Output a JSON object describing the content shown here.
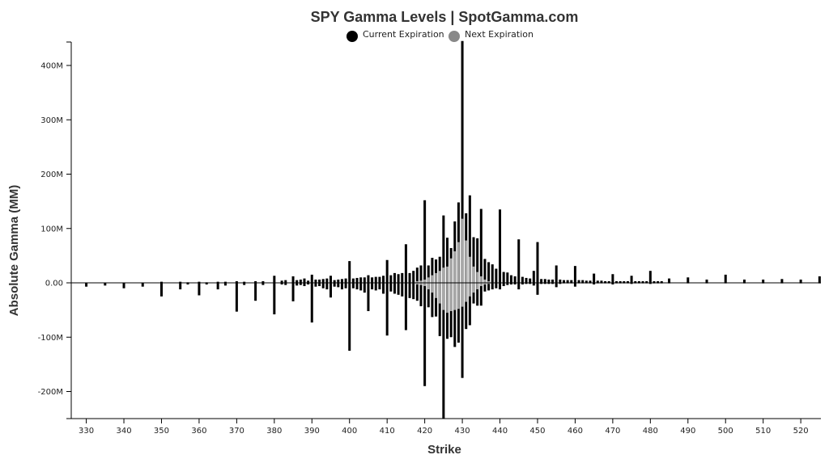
{
  "chart_data": {
    "type": "bar",
    "title": "SPY Gamma Levels | SpotGamma.com",
    "xlabel": "Strike",
    "ylabel": "Absolute Gamma (MM)",
    "xlim": [
      326,
      525
    ],
    "ylim": [
      -250,
      445
    ],
    "x_ticks": [
      330,
      340,
      350,
      360,
      370,
      380,
      390,
      400,
      410,
      420,
      430,
      440,
      450,
      460,
      470,
      480,
      490,
      500,
      510,
      520
    ],
    "y_ticks": [
      {
        "value": 400,
        "label": "400M"
      },
      {
        "value": 300,
        "label": "300M"
      },
      {
        "value": 200,
        "label": "200M"
      },
      {
        "value": 100,
        "label": "100M"
      },
      {
        "value": 0,
        "label": "0.00"
      },
      {
        "value": -100,
        "label": "-100M"
      },
      {
        "value": -200,
        "label": "-200M"
      }
    ],
    "legend": "top-center",
    "series": [
      {
        "name": "Current Expiration",
        "color": "#000000",
        "points": [
          {
            "x": 330,
            "pos": 0,
            "neg": -7
          },
          {
            "x": 335,
            "pos": 0,
            "neg": -5
          },
          {
            "x": 340,
            "pos": 0,
            "neg": -10
          },
          {
            "x": 345,
            "pos": 0,
            "neg": -7
          },
          {
            "x": 350,
            "pos": 2,
            "neg": -25
          },
          {
            "x": 355,
            "pos": 2,
            "neg": -12
          },
          {
            "x": 357,
            "pos": 1,
            "neg": -3
          },
          {
            "x": 360,
            "pos": 2,
            "neg": -23
          },
          {
            "x": 362,
            "pos": 1,
            "neg": -3
          },
          {
            "x": 365,
            "pos": 2,
            "neg": -12
          },
          {
            "x": 367,
            "pos": 2,
            "neg": -5
          },
          {
            "x": 370,
            "pos": 3,
            "neg": -53
          },
          {
            "x": 372,
            "pos": 2,
            "neg": -4
          },
          {
            "x": 375,
            "pos": 3,
            "neg": -33
          },
          {
            "x": 377,
            "pos": 3,
            "neg": -4
          },
          {
            "x": 380,
            "pos": 13,
            "neg": -58
          },
          {
            "x": 382,
            "pos": 4,
            "neg": -3
          },
          {
            "x": 383,
            "pos": 5,
            "neg": -4
          },
          {
            "x": 385,
            "pos": 12,
            "neg": -34
          },
          {
            "x": 386,
            "pos": 5,
            "neg": -5
          },
          {
            "x": 387,
            "pos": 6,
            "neg": -4
          },
          {
            "x": 388,
            "pos": 8,
            "neg": -6
          },
          {
            "x": 389,
            "pos": 4,
            "neg": -3
          },
          {
            "x": 390,
            "pos": 15,
            "neg": -73
          },
          {
            "x": 391,
            "pos": 6,
            "neg": -7
          },
          {
            "x": 392,
            "pos": 6,
            "neg": -6
          },
          {
            "x": 393,
            "pos": 7,
            "neg": -10
          },
          {
            "x": 394,
            "pos": 8,
            "neg": -12
          },
          {
            "x": 395,
            "pos": 13,
            "neg": -27
          },
          {
            "x": 396,
            "pos": 5,
            "neg": -7
          },
          {
            "x": 397,
            "pos": 6,
            "neg": -8
          },
          {
            "x": 398,
            "pos": 7,
            "neg": -12
          },
          {
            "x": 399,
            "pos": 8,
            "neg": -10
          },
          {
            "x": 400,
            "pos": 40,
            "neg": -125
          },
          {
            "x": 401,
            "pos": 8,
            "neg": -10
          },
          {
            "x": 402,
            "pos": 9,
            "neg": -12
          },
          {
            "x": 403,
            "pos": 10,
            "neg": -14
          },
          {
            "x": 404,
            "pos": 10,
            "neg": -18
          },
          {
            "x": 405,
            "pos": 14,
            "neg": -52
          },
          {
            "x": 406,
            "pos": 10,
            "neg": -12
          },
          {
            "x": 407,
            "pos": 11,
            "neg": -14
          },
          {
            "x": 408,
            "pos": 11,
            "neg": -12
          },
          {
            "x": 409,
            "pos": 13,
            "neg": -20
          },
          {
            "x": 410,
            "pos": 42,
            "neg": -97
          },
          {
            "x": 411,
            "pos": 14,
            "neg": -16
          },
          {
            "x": 412,
            "pos": 18,
            "neg": -20
          },
          {
            "x": 413,
            "pos": 16,
            "neg": -22
          },
          {
            "x": 414,
            "pos": 18,
            "neg": -25
          },
          {
            "x": 415,
            "pos": 71,
            "neg": -87
          },
          {
            "x": 416,
            "pos": 18,
            "neg": -28
          },
          {
            "x": 417,
            "pos": 22,
            "neg": -30
          },
          {
            "x": 418,
            "pos": 28,
            "neg": -33
          },
          {
            "x": 419,
            "pos": 32,
            "neg": -43
          },
          {
            "x": 420,
            "pos": 152,
            "neg": -190
          },
          {
            "x": 421,
            "pos": 32,
            "neg": -45
          },
          {
            "x": 422,
            "pos": 46,
            "neg": -63
          },
          {
            "x": 423,
            "pos": 43,
            "neg": -62
          },
          {
            "x": 424,
            "pos": 48,
            "neg": -98
          },
          {
            "x": 425,
            "pos": 124,
            "neg": -250
          },
          {
            "x": 426,
            "pos": 83,
            "neg": -103
          },
          {
            "x": 427,
            "pos": 64,
            "neg": -100
          },
          {
            "x": 428,
            "pos": 113,
            "neg": -118
          },
          {
            "x": 429,
            "pos": 148,
            "neg": -110
          },
          {
            "x": 430,
            "pos": 445,
            "neg": -175
          },
          {
            "x": 431,
            "pos": 128,
            "neg": -85
          },
          {
            "x": 432,
            "pos": 161,
            "neg": -78
          },
          {
            "x": 433,
            "pos": 84,
            "neg": -38
          },
          {
            "x": 434,
            "pos": 82,
            "neg": -42
          },
          {
            "x": 435,
            "pos": 136,
            "neg": -42
          },
          {
            "x": 436,
            "pos": 44,
            "neg": -16
          },
          {
            "x": 437,
            "pos": 38,
            "neg": -14
          },
          {
            "x": 438,
            "pos": 34,
            "neg": -12
          },
          {
            "x": 439,
            "pos": 26,
            "neg": -10
          },
          {
            "x": 440,
            "pos": 135,
            "neg": -12
          },
          {
            "x": 441,
            "pos": 20,
            "neg": -6
          },
          {
            "x": 442,
            "pos": 19,
            "neg": -4
          },
          {
            "x": 443,
            "pos": 14,
            "neg": -3
          },
          {
            "x": 444,
            "pos": 12,
            "neg": -3
          },
          {
            "x": 445,
            "pos": 80,
            "neg": -12
          },
          {
            "x": 446,
            "pos": 11,
            "neg": -3
          },
          {
            "x": 447,
            "pos": 9,
            "neg": -2
          },
          {
            "x": 448,
            "pos": 8,
            "neg": -2
          },
          {
            "x": 449,
            "pos": 22,
            "neg": -5
          },
          {
            "x": 450,
            "pos": 75,
            "neg": -22
          },
          {
            "x": 451,
            "pos": 7,
            "neg": -2
          },
          {
            "x": 452,
            "pos": 7,
            "neg": -2
          },
          {
            "x": 453,
            "pos": 6,
            "neg": -2
          },
          {
            "x": 454,
            "pos": 6,
            "neg": -2
          },
          {
            "x": 455,
            "pos": 32,
            "neg": -8
          },
          {
            "x": 456,
            "pos": 6,
            "neg": -2
          },
          {
            "x": 457,
            "pos": 5,
            "neg": -1
          },
          {
            "x": 458,
            "pos": 5,
            "neg": -1
          },
          {
            "x": 459,
            "pos": 5,
            "neg": -1
          },
          {
            "x": 460,
            "pos": 31,
            "neg": -7
          },
          {
            "x": 461,
            "pos": 5,
            "neg": -1
          },
          {
            "x": 462,
            "pos": 5,
            "neg": -1
          },
          {
            "x": 463,
            "pos": 4,
            "neg": -1
          },
          {
            "x": 464,
            "pos": 4,
            "neg": -1
          },
          {
            "x": 465,
            "pos": 17,
            "neg": -3
          },
          {
            "x": 466,
            "pos": 4,
            "neg": -1
          },
          {
            "x": 467,
            "pos": 4,
            "neg": -1
          },
          {
            "x": 468,
            "pos": 3,
            "neg": -1
          },
          {
            "x": 469,
            "pos": 3,
            "neg": -1
          },
          {
            "x": 470,
            "pos": 16,
            "neg": -3
          },
          {
            "x": 471,
            "pos": 3,
            "neg": -1
          },
          {
            "x": 472,
            "pos": 3,
            "neg": -1
          },
          {
            "x": 473,
            "pos": 3,
            "neg": -1
          },
          {
            "x": 474,
            "pos": 3,
            "neg": -1
          },
          {
            "x": 475,
            "pos": 13,
            "neg": -2
          },
          {
            "x": 476,
            "pos": 3,
            "neg": -1
          },
          {
            "x": 477,
            "pos": 3,
            "neg": -1
          },
          {
            "x": 478,
            "pos": 3,
            "neg": -1
          },
          {
            "x": 479,
            "pos": 3,
            "neg": -1
          },
          {
            "x": 480,
            "pos": 22,
            "neg": -2
          },
          {
            "x": 481,
            "pos": 3,
            "neg": -1
          },
          {
            "x": 482,
            "pos": 3,
            "neg": -1
          },
          {
            "x": 483,
            "pos": 3,
            "neg": -1
          },
          {
            "x": 485,
            "pos": 8,
            "neg": -1
          },
          {
            "x": 490,
            "pos": 10,
            "neg": -1
          },
          {
            "x": 495,
            "pos": 6,
            "neg": -1
          },
          {
            "x": 500,
            "pos": 15,
            "neg": -1
          },
          {
            "x": 505,
            "pos": 6,
            "neg": -1
          },
          {
            "x": 510,
            "pos": 6,
            "neg": -1
          },
          {
            "x": 515,
            "pos": 7,
            "neg": -1
          },
          {
            "x": 520,
            "pos": 6,
            "neg": -1
          },
          {
            "x": 525,
            "pos": 12,
            "neg": -1
          }
        ]
      },
      {
        "name": "Next Expiration",
        "color": "#a8a8a8",
        "points": [
          {
            "x": 418,
            "pos": 3,
            "neg": -3
          },
          {
            "x": 419,
            "pos": 4,
            "neg": -4
          },
          {
            "x": 420,
            "pos": 6,
            "neg": -6
          },
          {
            "x": 421,
            "pos": 10,
            "neg": -12
          },
          {
            "x": 422,
            "pos": 14,
            "neg": -18
          },
          {
            "x": 423,
            "pos": 18,
            "neg": -28
          },
          {
            "x": 424,
            "pos": 22,
            "neg": -38
          },
          {
            "x": 425,
            "pos": 28,
            "neg": -50
          },
          {
            "x": 426,
            "pos": 30,
            "neg": -55
          },
          {
            "x": 427,
            "pos": 45,
            "neg": -52
          },
          {
            "x": 428,
            "pos": 58,
            "neg": -50
          },
          {
            "x": 429,
            "pos": 75,
            "neg": -48
          },
          {
            "x": 430,
            "pos": 118,
            "neg": -44
          },
          {
            "x": 431,
            "pos": 78,
            "neg": -35
          },
          {
            "x": 432,
            "pos": 48,
            "neg": -25
          },
          {
            "x": 433,
            "pos": 30,
            "neg": -18
          },
          {
            "x": 434,
            "pos": 20,
            "neg": -12
          },
          {
            "x": 435,
            "pos": 12,
            "neg": -6
          },
          {
            "x": 436,
            "pos": 6,
            "neg": -3
          },
          {
            "x": 437,
            "pos": 3,
            "neg": -2
          }
        ]
      }
    ]
  }
}
